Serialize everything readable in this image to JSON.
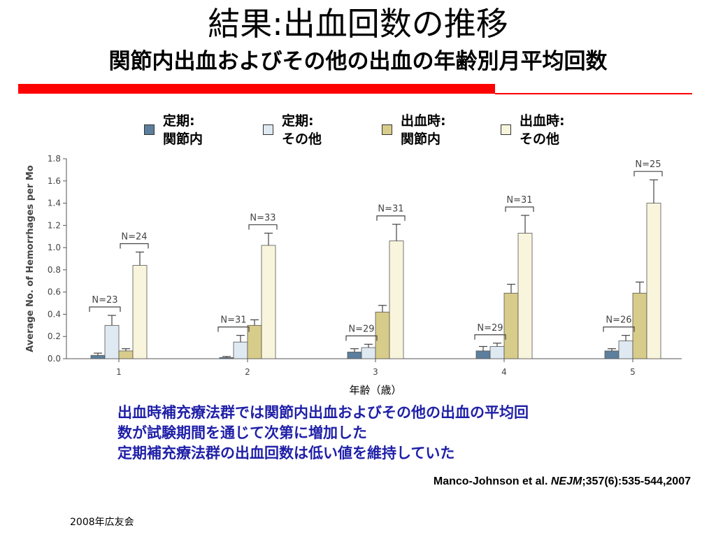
{
  "slide": {
    "title": "結果:出血回数の推移",
    "subtitle": "関節内出血およびその他の出血の年齢別月平均回数",
    "notes": [
      "出血時補充療法群では関節内出血およびその他の出血の平均回",
      "数が試験期間を通じて次第に増加した",
      "定期補充療法群の出血回数は低い値を維持していた"
    ],
    "citation_pre": "Manco-Johnson et al. ",
    "citation_journal": "NEJM",
    "citation_post": ";357(6):535-544,2007",
    "footer": "2008年広友会",
    "colors": {
      "accent_bar": "#ff0000",
      "notes_text": "#1f1fa8"
    }
  },
  "chart_data": {
    "type": "bar",
    "ylabel": "Average No. of Hemorrhages per Mo",
    "xlabel": "年齢（歳）",
    "ylim": [
      0,
      1.8
    ],
    "yticks": [
      "0.0",
      "0.2",
      "0.4",
      "0.6",
      "0.8",
      "1.0",
      "1.2",
      "1.4",
      "1.6",
      "1.8"
    ],
    "categories": [
      "1",
      "2",
      "3",
      "4",
      "5"
    ],
    "legend_position": "top",
    "series": [
      {
        "name": "定期:\n関節内",
        "color": "#5b7f9c",
        "values": [
          0.03,
          0.01,
          0.06,
          0.07,
          0.07
        ],
        "errors": [
          0.02,
          0.01,
          0.03,
          0.04,
          0.02
        ]
      },
      {
        "name": "定期:\nその他",
        "color": "#dfe9f1",
        "values": [
          0.3,
          0.15,
          0.1,
          0.11,
          0.16
        ],
        "errors": [
          0.09,
          0.06,
          0.03,
          0.03,
          0.05
        ]
      },
      {
        "name": "出血時:\n関節内",
        "color": "#d8cc8a",
        "values": [
          0.07,
          0.3,
          0.42,
          0.59,
          0.59
        ],
        "errors": [
          0.02,
          0.05,
          0.06,
          0.08,
          0.1
        ]
      },
      {
        "name": "出血時:\nその他",
        "color": "#f8f5dc",
        "values": [
          0.84,
          1.02,
          1.06,
          1.13,
          1.4
        ],
        "errors": [
          0.12,
          0.11,
          0.15,
          0.16,
          0.21
        ]
      }
    ],
    "n_labels": [
      {
        "category": "1",
        "prophylaxis": "N=23",
        "episodic": "N=24"
      },
      {
        "category": "2",
        "prophylaxis": "N=31",
        "episodic": "N=33"
      },
      {
        "category": "3",
        "prophylaxis": "N=29",
        "episodic": "N=31"
      },
      {
        "category": "4",
        "prophylaxis": "N=29",
        "episodic": "N=31"
      },
      {
        "category": "5",
        "prophylaxis": "N=26",
        "episodic": "N=25"
      }
    ]
  }
}
